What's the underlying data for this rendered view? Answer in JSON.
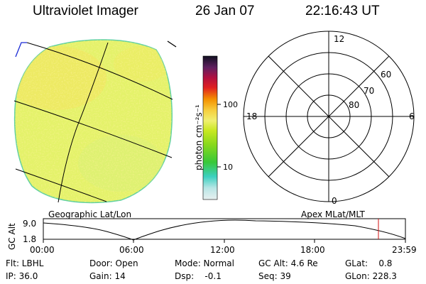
{
  "header": {
    "title": "Ultraviolet Imager",
    "date": "26 Jan 07",
    "time": "22:16:43 UT"
  },
  "colorbar": {
    "unit_label": "photon cm⁻²s⁻¹",
    "ticks": [
      "100",
      "10"
    ]
  },
  "panels": {
    "left_caption": "Geographic Lat/Lon",
    "right_caption": "Apex MLat/MLT"
  },
  "polar_plot": {
    "mlt_labels": {
      "top": "12",
      "right": "6",
      "left": "18",
      "bottom": "0"
    },
    "lat_labels": [
      "60",
      "70",
      "80"
    ]
  },
  "altitude_plot": {
    "ylabel": "GC Alt",
    "y_ticks": [
      "9.0",
      "1.8"
    ],
    "x_ticks": [
      "00:00",
      "06:00",
      "12:00",
      "18:00",
      "23:59"
    ],
    "current_marker_time": "22:16",
    "colors": {
      "marker": "#d01010"
    }
  },
  "info": {
    "filter": "Flt: LBHL",
    "ip": "IP: 36.0",
    "door": "Door: Open",
    "gain": "Gain: 14",
    "mode": "Mode: Normal",
    "dsp": "Dsp:    -0.1",
    "gc_alt": "GC Alt: 4.6 Re",
    "seq": "Seq: 39",
    "glat": "GLat:    0.8",
    "glon": "GLon: 228.3"
  },
  "colors": {
    "disk_fill": "#e4f26a",
    "disk_edge": "#5fd0a0",
    "frame_corner": "#1a2bd6"
  }
}
